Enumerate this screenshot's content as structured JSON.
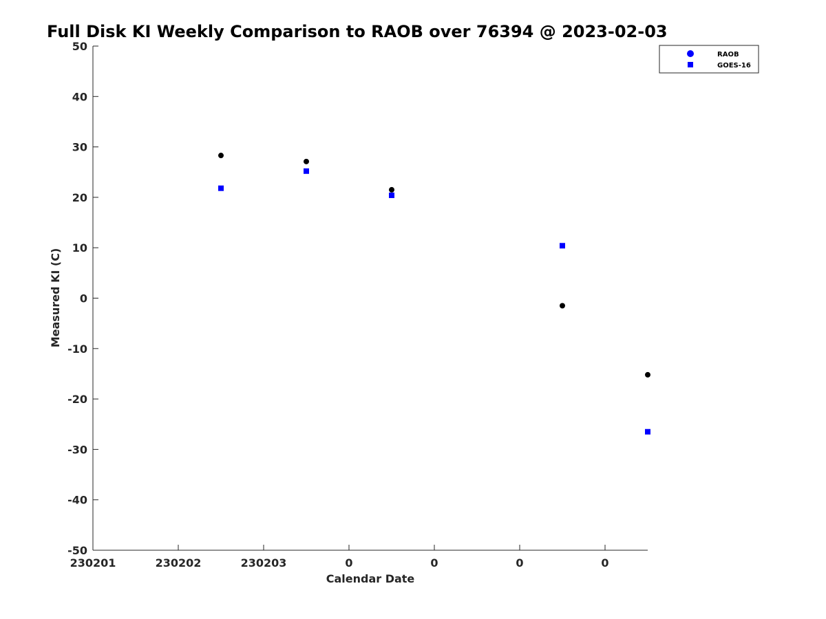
{
  "chart_data": {
    "type": "scatter",
    "title": "Full Disk KI Weekly Comparison to RAOB over 76394 @ 2023-02-03",
    "xlabel": "Calendar Date",
    "ylabel": "Measured KI (C)",
    "xlim": [
      0,
      6.5
    ],
    "ylim": [
      -50,
      50
    ],
    "x_ticks": [
      {
        "value": 0,
        "label": "230201"
      },
      {
        "value": 1,
        "label": "230202"
      },
      {
        "value": 2,
        "label": "230203"
      },
      {
        "value": 3,
        "label": "0"
      },
      {
        "value": 4,
        "label": "0"
      },
      {
        "value": 5,
        "label": "0"
      },
      {
        "value": 6,
        "label": "0"
      }
    ],
    "y_ticks": [
      50,
      40,
      30,
      20,
      10,
      0,
      -10,
      -20,
      -30,
      -40,
      -50
    ],
    "grid": false,
    "legend_position": "top-right",
    "series": [
      {
        "name": "RAOB",
        "marker": "circle",
        "color": "#000000",
        "legend_color": "#0000ff",
        "x": [
          1.5,
          2.5,
          3.5,
          5.5,
          6.5
        ],
        "y": [
          28.3,
          27.1,
          21.5,
          -1.5,
          -15.2
        ]
      },
      {
        "name": "GOES-16",
        "marker": "square",
        "color": "#0000ff",
        "legend_color": "#0000ff",
        "x": [
          1.5,
          2.5,
          3.5,
          5.5,
          6.5
        ],
        "y": [
          21.8,
          25.2,
          20.4,
          10.4,
          -26.5
        ]
      }
    ]
  }
}
